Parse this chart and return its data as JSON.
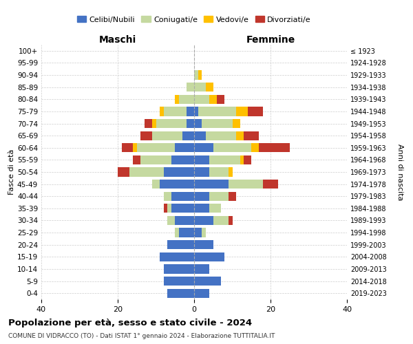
{
  "age_groups": [
    "100+",
    "95-99",
    "90-94",
    "85-89",
    "80-84",
    "75-79",
    "70-74",
    "65-69",
    "60-64",
    "55-59",
    "50-54",
    "45-49",
    "40-44",
    "35-39",
    "30-34",
    "25-29",
    "20-24",
    "15-19",
    "10-14",
    "5-9",
    "0-4"
  ],
  "birth_years": [
    "≤ 1923",
    "1924-1928",
    "1929-1933",
    "1934-1938",
    "1939-1943",
    "1944-1948",
    "1949-1953",
    "1954-1958",
    "1959-1963",
    "1964-1968",
    "1969-1973",
    "1974-1978",
    "1979-1983",
    "1984-1988",
    "1989-1993",
    "1994-1998",
    "1999-2003",
    "2004-2008",
    "2009-2013",
    "2014-2018",
    "2019-2023"
  ],
  "maschi": {
    "celibi": [
      0,
      0,
      0,
      0,
      0,
      2,
      2,
      3,
      5,
      6,
      8,
      9,
      6,
      6,
      5,
      4,
      7,
      9,
      8,
      8,
      7
    ],
    "coniugati": [
      0,
      0,
      0,
      2,
      4,
      6,
      8,
      8,
      10,
      8,
      9,
      2,
      2,
      1,
      2,
      1,
      0,
      0,
      0,
      0,
      0
    ],
    "vedovi": [
      0,
      0,
      0,
      0,
      1,
      1,
      1,
      0,
      1,
      0,
      0,
      0,
      0,
      0,
      0,
      0,
      0,
      0,
      0,
      0,
      0
    ],
    "divorziati": [
      0,
      0,
      0,
      0,
      0,
      0,
      2,
      3,
      3,
      2,
      3,
      0,
      0,
      1,
      0,
      0,
      0,
      0,
      0,
      0,
      0
    ]
  },
  "femmine": {
    "nubili": [
      0,
      0,
      0,
      0,
      0,
      1,
      2,
      3,
      5,
      4,
      4,
      9,
      4,
      4,
      5,
      2,
      5,
      8,
      4,
      7,
      4
    ],
    "coniugate": [
      0,
      0,
      1,
      3,
      4,
      10,
      8,
      8,
      10,
      8,
      5,
      9,
      5,
      3,
      4,
      1,
      0,
      0,
      0,
      0,
      0
    ],
    "vedove": [
      0,
      0,
      1,
      2,
      2,
      3,
      2,
      2,
      2,
      1,
      1,
      0,
      0,
      0,
      0,
      0,
      0,
      0,
      0,
      0,
      0
    ],
    "divorziate": [
      0,
      0,
      0,
      0,
      2,
      4,
      0,
      4,
      8,
      2,
      0,
      4,
      2,
      0,
      1,
      0,
      0,
      0,
      0,
      0,
      0
    ]
  },
  "colors": {
    "celibi_nubili": "#4472c4",
    "coniugati": "#c5d9a0",
    "vedovi": "#ffc000",
    "divorziati": "#c0362c"
  },
  "xlim": 40,
  "title": "Popolazione per età, sesso e stato civile - 2024",
  "subtitle": "COMUNE DI VIDRACCO (TO) - Dati ISTAT 1° gennaio 2024 - Elaborazione TUTTITALIA.IT",
  "ylabel_left": "Fasce di età",
  "ylabel_right": "Anni di nascita",
  "xlabel_left": "Maschi",
  "xlabel_right": "Femmine",
  "bg_color": "#ffffff",
  "grid_color": "#cccccc"
}
